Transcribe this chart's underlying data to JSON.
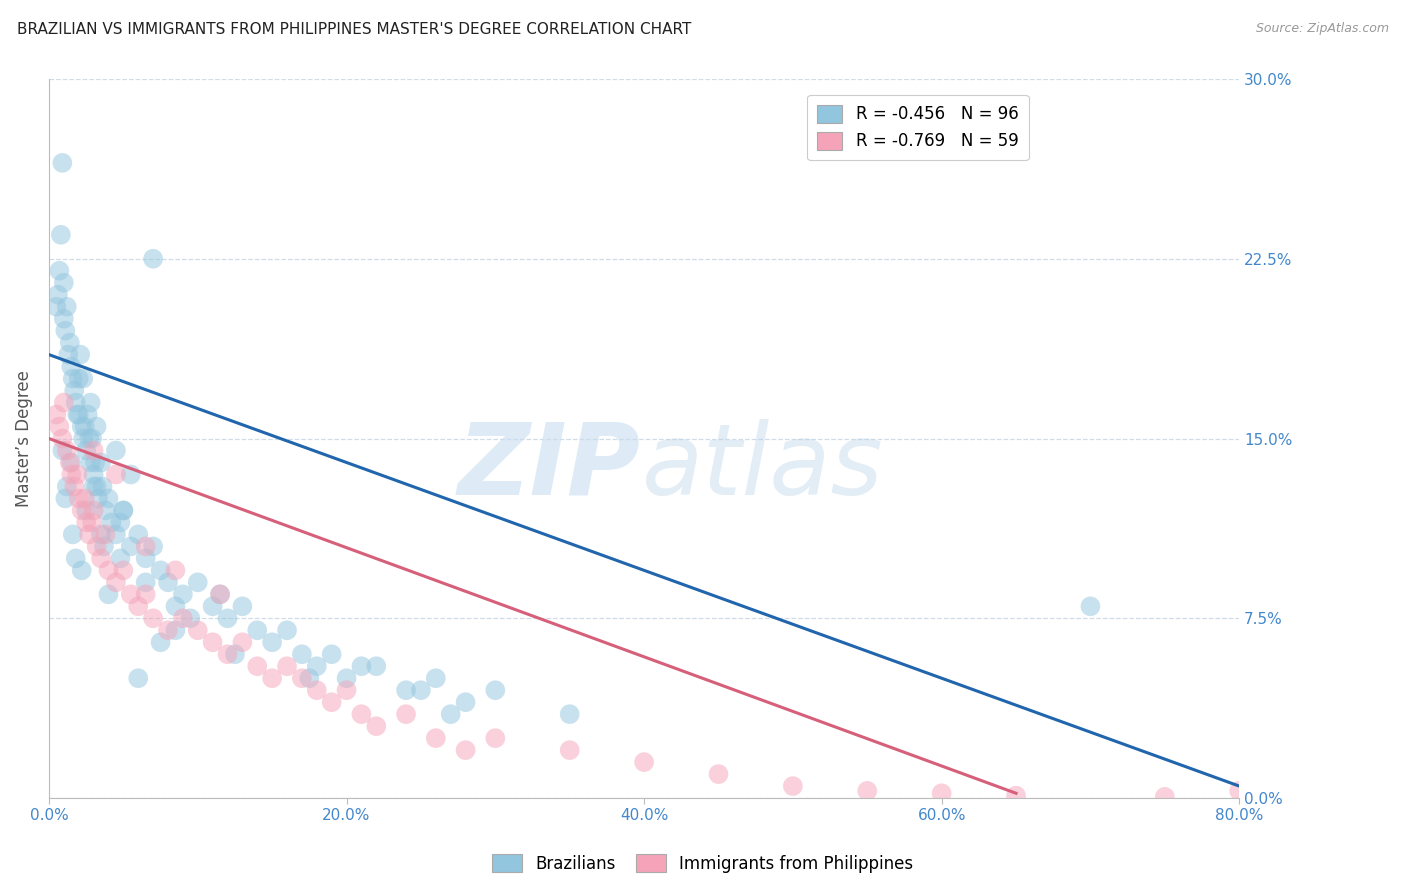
{
  "title": "BRAZILIAN VS IMMIGRANTS FROM PHILIPPINES MASTER'S DEGREE CORRELATION CHART",
  "source": "Source: ZipAtlas.com",
  "ylabel": "Master’s Degree",
  "xlim": [
    0.0,
    80.0
  ],
  "ylim": [
    0.0,
    30.0
  ],
  "ytick_values": [
    0.0,
    7.5,
    15.0,
    22.5,
    30.0
  ],
  "xtick_values": [
    0.0,
    20.0,
    40.0,
    60.0,
    80.0
  ],
  "legend": {
    "blue_label": "Brazilians",
    "pink_label": "Immigrants from Philippines",
    "blue_R": "-0.456",
    "blue_N": "96",
    "pink_R": "-0.769",
    "pink_N": "59"
  },
  "blue_color": "#92c5de",
  "pink_color": "#f4a3b8",
  "blue_line_color": "#2166ac",
  "pink_line_color": "#d6607a",
  "grid_color": "#d0dde8",
  "title_color": "#222222",
  "axis_label_color": "#4488cc",
  "blue_scatter_x": [
    0.5,
    0.6,
    0.7,
    0.8,
    0.9,
    1.0,
    1.0,
    1.1,
    1.2,
    1.3,
    1.4,
    1.5,
    1.6,
    1.7,
    1.8,
    1.9,
    2.0,
    2.1,
    2.2,
    2.3,
    2.4,
    2.5,
    2.6,
    2.7,
    2.8,
    2.9,
    3.0,
    3.1,
    3.2,
    3.3,
    3.5,
    3.6,
    3.8,
    4.0,
    4.2,
    4.5,
    4.8,
    5.0,
    5.5,
    6.0,
    6.5,
    7.0,
    7.5,
    8.0,
    9.0,
    10.0,
    11.0,
    12.0,
    13.0,
    14.0,
    15.0,
    16.0,
    17.0,
    18.0,
    19.0,
    20.0,
    22.0,
    24.0,
    26.0,
    28.0,
    30.0,
    35.0,
    7.0,
    2.0,
    1.5,
    3.0,
    4.0,
    5.5,
    7.5,
    3.5,
    2.5,
    1.8,
    1.2,
    0.9,
    1.1,
    2.8,
    4.5,
    6.5,
    8.5,
    3.2,
    1.6,
    2.2,
    4.8,
    9.5,
    12.5,
    17.5,
    21.0,
    25.0,
    27.0,
    8.5,
    11.5,
    6.0,
    5.0,
    3.7,
    2.3,
    70.0
  ],
  "blue_scatter_y": [
    20.5,
    21.0,
    22.0,
    23.5,
    26.5,
    20.0,
    21.5,
    19.5,
    20.5,
    18.5,
    19.0,
    18.0,
    17.5,
    17.0,
    16.5,
    16.0,
    17.5,
    18.5,
    15.5,
    15.0,
    15.5,
    14.5,
    16.0,
    15.0,
    14.0,
    15.0,
    13.5,
    14.0,
    13.0,
    12.5,
    14.0,
    13.0,
    12.0,
    12.5,
    11.5,
    11.0,
    11.5,
    12.0,
    10.5,
    11.0,
    10.0,
    10.5,
    9.5,
    9.0,
    8.5,
    9.0,
    8.0,
    7.5,
    8.0,
    7.0,
    6.5,
    7.0,
    6.0,
    5.5,
    6.0,
    5.0,
    5.5,
    4.5,
    5.0,
    4.0,
    4.5,
    3.5,
    22.5,
    16.0,
    14.0,
    13.0,
    8.5,
    13.5,
    6.5,
    11.0,
    12.0,
    10.0,
    13.0,
    14.5,
    12.5,
    16.5,
    14.5,
    9.0,
    8.0,
    15.5,
    11.0,
    9.5,
    10.0,
    7.5,
    6.0,
    5.0,
    5.5,
    4.5,
    3.5,
    7.0,
    8.5,
    5.0,
    12.0,
    10.5,
    17.5,
    8.0
  ],
  "pink_scatter_x": [
    0.5,
    0.7,
    0.9,
    1.0,
    1.2,
    1.4,
    1.5,
    1.7,
    1.9,
    2.0,
    2.2,
    2.4,
    2.5,
    2.7,
    2.9,
    3.0,
    3.2,
    3.5,
    3.8,
    4.0,
    4.5,
    5.0,
    5.5,
    6.0,
    6.5,
    7.0,
    8.0,
    9.0,
    10.0,
    11.0,
    12.0,
    13.0,
    14.0,
    15.0,
    16.0,
    17.0,
    18.0,
    19.0,
    20.0,
    21.0,
    22.0,
    24.0,
    26.0,
    28.0,
    30.0,
    35.0,
    40.0,
    45.0,
    50.0,
    55.0,
    60.0,
    65.0,
    75.0,
    80.0,
    6.5,
    4.5,
    8.5,
    11.5,
    3.0
  ],
  "pink_scatter_y": [
    16.0,
    15.5,
    15.0,
    16.5,
    14.5,
    14.0,
    13.5,
    13.0,
    13.5,
    12.5,
    12.0,
    12.5,
    11.5,
    11.0,
    11.5,
    12.0,
    10.5,
    10.0,
    11.0,
    9.5,
    9.0,
    9.5,
    8.5,
    8.0,
    8.5,
    7.5,
    7.0,
    7.5,
    7.0,
    6.5,
    6.0,
    6.5,
    5.5,
    5.0,
    5.5,
    5.0,
    4.5,
    4.0,
    4.5,
    3.5,
    3.0,
    3.5,
    2.5,
    2.0,
    2.5,
    2.0,
    1.5,
    1.0,
    0.5,
    0.3,
    0.2,
    0.1,
    0.05,
    0.3,
    10.5,
    13.5,
    9.5,
    8.5,
    14.5
  ],
  "blue_reg_x0": 0.0,
  "blue_reg_y0": 18.5,
  "blue_reg_x1": 80.0,
  "blue_reg_y1": 0.5,
  "pink_reg_x0": 0.0,
  "pink_reg_y0": 15.0,
  "pink_reg_x1": 65.0,
  "pink_reg_y1": 0.2
}
